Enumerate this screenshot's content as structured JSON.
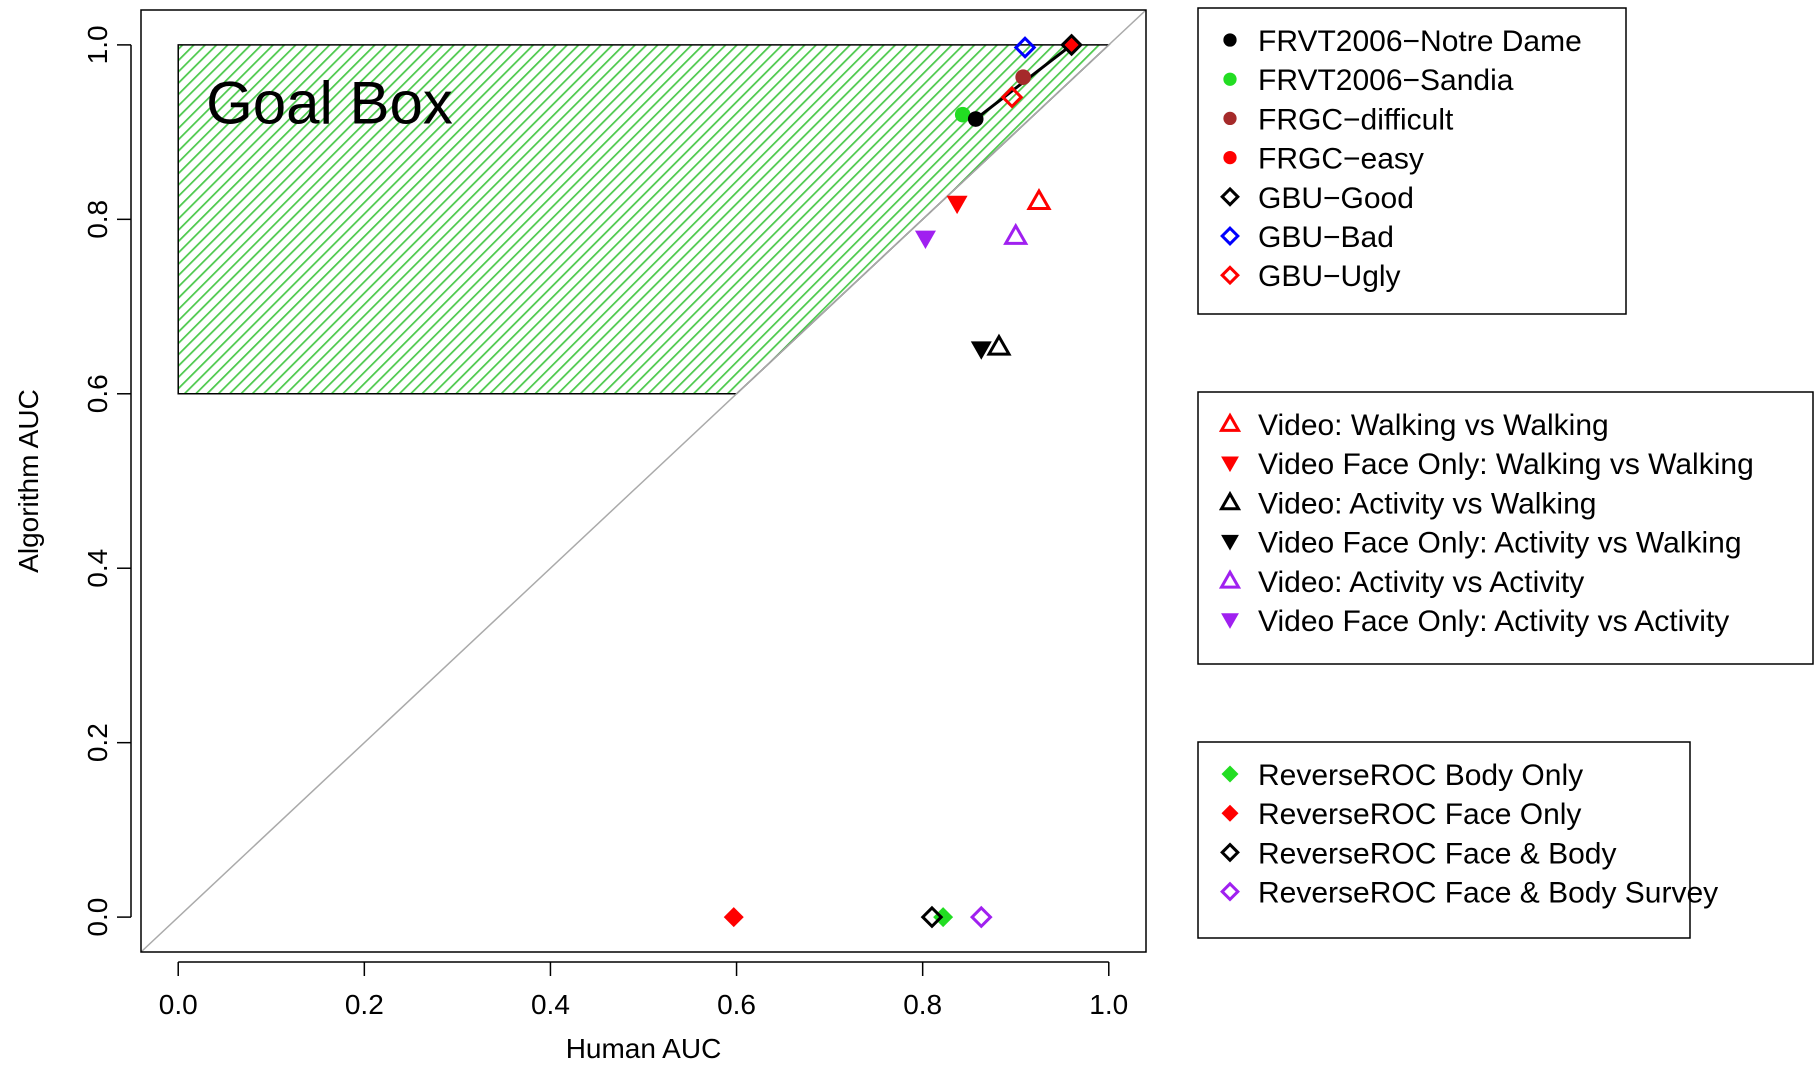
{
  "chart_data": {
    "type": "scatter",
    "title": "",
    "xlabel": "Human AUC",
    "ylabel": "Algorithm AUC",
    "xlim": [
      -0.04,
      1.04
    ],
    "ylim": [
      -0.04,
      1.04
    ],
    "x_ticks": [
      {
        "value": 0.0,
        "label": "0.0"
      },
      {
        "value": 0.2,
        "label": "0.2"
      },
      {
        "value": 0.4,
        "label": "0.4"
      },
      {
        "value": 0.6,
        "label": "0.6"
      },
      {
        "value": 0.8,
        "label": "0.8"
      },
      {
        "value": 1.0,
        "label": "1.0"
      }
    ],
    "y_ticks": [
      {
        "value": 0.0,
        "label": "0.0"
      },
      {
        "value": 0.2,
        "label": "0.2"
      },
      {
        "value": 0.4,
        "label": "0.4"
      },
      {
        "value": 0.6,
        "label": "0.6"
      },
      {
        "value": 0.8,
        "label": "0.8"
      },
      {
        "value": 1.0,
        "label": "1.0"
      }
    ],
    "grid": false,
    "annotation": "Goal Box",
    "goal_box": [
      [
        0,
        0.6
      ],
      [
        0,
        1.0
      ],
      [
        1.0,
        1.0
      ],
      [
        0.6,
        0.6
      ]
    ],
    "goal_box_color": "#4cc94c",
    "reference_line": {
      "from": [
        -0.04,
        -0.04
      ],
      "to": [
        1.04,
        1.04
      ],
      "color": "#aaaaaa"
    },
    "connector_line": {
      "points": [
        [
          0.857,
          0.915
        ],
        [
          0.96,
          1.0
        ]
      ],
      "color": "#000000"
    },
    "legends": [
      {
        "placement": "top-right",
        "entries": [
          {
            "label": "FRVT2006−Notre Dame",
            "marker": "circle-filled",
            "color": "#000000"
          },
          {
            "label": "FRVT2006−Sandia",
            "marker": "circle-filled",
            "color": "#22dd22"
          },
          {
            "label": "FRGC−difficult",
            "marker": "circle-filled",
            "color": "#a52a2a"
          },
          {
            "label": "FRGC−easy",
            "marker": "circle-filled",
            "color": "#ff0000"
          },
          {
            "label": "GBU−Good",
            "marker": "diamond-open",
            "color": "#000000"
          },
          {
            "label": "GBU−Bad",
            "marker": "diamond-open",
            "color": "#0000ff"
          },
          {
            "label": "GBU−Ugly",
            "marker": "diamond-open",
            "color": "#ff0000"
          }
        ]
      },
      {
        "placement": "right",
        "entries": [
          {
            "label": "Video: Walking vs Walking",
            "marker": "triangle-up-open",
            "color": "#ff0000"
          },
          {
            "label": "Video Face Only: Walking vs Walking",
            "marker": "triangle-down-filled",
            "color": "#ff0000"
          },
          {
            "label": "Video: Activity vs Walking",
            "marker": "triangle-up-open",
            "color": "#000000"
          },
          {
            "label": "Video Face Only: Activity vs Walking",
            "marker": "triangle-down-filled",
            "color": "#000000"
          },
          {
            "label": "Video: Activity vs Activity",
            "marker": "triangle-up-open",
            "color": "#a020f0"
          },
          {
            "label": "Video Face Only: Activity vs Activity",
            "marker": "triangle-down-filled",
            "color": "#a020f0"
          }
        ]
      },
      {
        "placement": "bottom-right",
        "entries": [
          {
            "label": "ReverseROC Body Only",
            "marker": "diamond-filled",
            "color": "#22dd22"
          },
          {
            "label": "ReverseROC Face Only",
            "marker": "diamond-filled",
            "color": "#ff0000"
          },
          {
            "label": "ReverseROC Face & Body",
            "marker": "diamond-open",
            "color": "#000000"
          },
          {
            "label": "ReverseROC Face & Body Survey",
            "marker": "diamond-open",
            "color": "#a020f0"
          }
        ]
      }
    ],
    "series": [
      {
        "name": "FRVT2006−Sandia",
        "marker": "circle-filled",
        "color": "#22dd22",
        "points": [
          [
            0.843,
            0.92
          ]
        ]
      },
      {
        "name": "FRVT2006−Notre Dame",
        "marker": "circle-filled",
        "color": "#000000",
        "points": [
          [
            0.857,
            0.915
          ]
        ]
      },
      {
        "name": "FRGC−difficult",
        "marker": "circle-filled",
        "color": "#a52a2a",
        "points": [
          [
            0.908,
            0.963
          ]
        ]
      },
      {
        "name": "FRGC−easy",
        "marker": "circle-filled",
        "color": "#ff0000",
        "points": [
          [
            0.96,
            1.0
          ]
        ]
      },
      {
        "name": "GBU−Good",
        "marker": "diamond-open",
        "color": "#000000",
        "points": [
          [
            0.96,
            1.0
          ]
        ]
      },
      {
        "name": "GBU−Bad",
        "marker": "diamond-open",
        "color": "#0000ff",
        "points": [
          [
            0.91,
            0.997
          ]
        ]
      },
      {
        "name": "GBU−Ugly",
        "marker": "diamond-open",
        "color": "#ff0000",
        "points": [
          [
            0.896,
            0.94
          ]
        ]
      },
      {
        "name": "Video: Walking vs Walking",
        "marker": "triangle-up-open",
        "color": "#ff0000",
        "points": [
          [
            0.925,
            0.821
          ]
        ]
      },
      {
        "name": "Video Face Only: Walking vs Walking",
        "marker": "triangle-down-filled",
        "color": "#ff0000",
        "points": [
          [
            0.837,
            0.818
          ]
        ]
      },
      {
        "name": "Video: Activity vs Walking",
        "marker": "triangle-up-open",
        "color": "#000000",
        "points": [
          [
            0.882,
            0.654
          ]
        ]
      },
      {
        "name": "Video Face Only: Activity vs Walking",
        "marker": "triangle-down-filled",
        "color": "#000000",
        "points": [
          [
            0.863,
            0.651
          ]
        ]
      },
      {
        "name": "Video: Activity vs Activity",
        "marker": "triangle-up-open",
        "color": "#a020f0",
        "points": [
          [
            0.9,
            0.781
          ]
        ]
      },
      {
        "name": "Video Face Only: Activity vs Activity",
        "marker": "triangle-down-filled",
        "color": "#a020f0",
        "points": [
          [
            0.803,
            0.778
          ]
        ]
      },
      {
        "name": "ReverseROC Body Only",
        "marker": "diamond-filled",
        "color": "#22dd22",
        "points": [
          [
            0.822,
            0.0
          ]
        ]
      },
      {
        "name": "ReverseROC Face Only",
        "marker": "diamond-filled",
        "color": "#ff0000",
        "points": [
          [
            0.597,
            0.0
          ]
        ]
      },
      {
        "name": "ReverseROC Face & Body",
        "marker": "diamond-open",
        "color": "#000000",
        "points": [
          [
            0.81,
            0.0
          ]
        ]
      },
      {
        "name": "ReverseROC Face & Body Survey",
        "marker": "diamond-open",
        "color": "#a020f0",
        "points": [
          [
            0.863,
            0.0
          ]
        ]
      }
    ]
  }
}
